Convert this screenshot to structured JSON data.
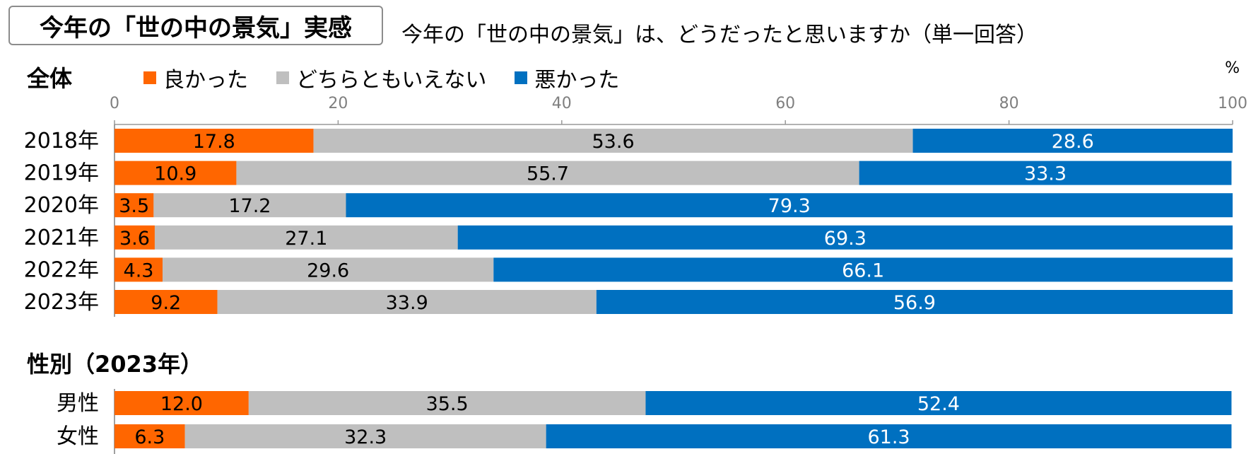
{
  "title": "今年の「世の中の景気」実感",
  "question": "今年の「世の中の景気」は、どうだったと思いますか（単一回答）",
  "unit_label": "%",
  "colors": {
    "good": "#ff6600",
    "neutral": "#bfbfbf",
    "bad": "#0070c0",
    "axis": "#999999"
  },
  "chart_data": [
    {
      "type": "bar",
      "orientation": "horizontal",
      "stacked": "100%",
      "section_title": "全体",
      "categories": [
        "2018年",
        "2019年",
        "2020年",
        "2021年",
        "2022年",
        "2023年"
      ],
      "series": [
        {
          "name": "良かった",
          "values": [
            17.8,
            10.9,
            3.5,
            3.6,
            4.3,
            9.2
          ]
        },
        {
          "name": "どちらともいえない",
          "values": [
            53.6,
            55.7,
            17.2,
            27.1,
            29.6,
            33.9
          ]
        },
        {
          "name": "悪かった",
          "values": [
            28.6,
            33.3,
            79.3,
            69.3,
            66.1,
            56.9
          ]
        }
      ],
      "xlim": [
        0,
        100
      ],
      "xticks": [
        0,
        20,
        40,
        60,
        80,
        100
      ],
      "legend": "top-left"
    },
    {
      "type": "bar",
      "orientation": "horizontal",
      "stacked": "100%",
      "section_title": "性別（2023年）",
      "categories": [
        "男性",
        "女性"
      ],
      "series": [
        {
          "name": "良かった",
          "values": [
            12.0,
            6.3
          ]
        },
        {
          "name": "どちらともいえない",
          "values": [
            35.5,
            32.3
          ]
        },
        {
          "name": "悪かった",
          "values": [
            52.4,
            61.3
          ]
        }
      ],
      "xlim": [
        0,
        100
      ]
    }
  ]
}
